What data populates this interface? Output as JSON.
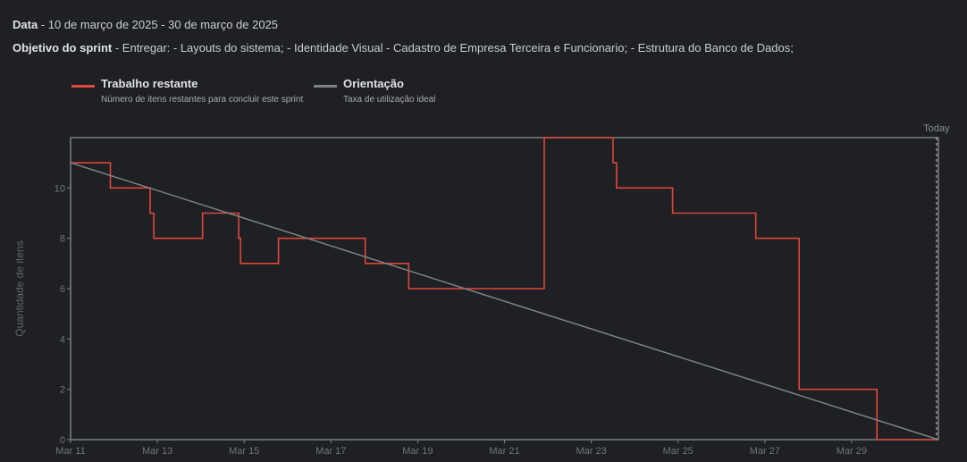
{
  "header": {
    "date_label": "Data",
    "date_value": " - 10 de março de 2025 - 30 de março de 2025",
    "goal_label": "Objetivo do sprint",
    "goal_value": " - Entregar: - Layouts do sistema; - Identidade Visual - Cadastro de Empresa Terceira e Funcionario; - Estrutura do Banco de Dados;"
  },
  "legend": {
    "remaining": {
      "title": "Trabalho restante",
      "subtitle": "Número de itens restantes para concluir este sprint",
      "color": "#e0453a"
    },
    "guide": {
      "title": "Orientação",
      "subtitle": "Taxa de utilização ideal",
      "color": "#7d8287"
    }
  },
  "chart_data": {
    "type": "line",
    "ylabel": "Quantidade de itens",
    "ylim": [
      0,
      12
    ],
    "yticks": [
      0,
      2,
      4,
      6,
      8,
      10
    ],
    "xlim": [
      "2025-03-11",
      "2025-03-31"
    ],
    "xticks": [
      "Mar 11",
      "Mar 13",
      "Mar 15",
      "Mar 17",
      "Mar 19",
      "Mar 21",
      "Mar 23",
      "Mar 25",
      "Mar 27",
      "Mar 29"
    ],
    "today_label": "Today",
    "today": "2025-03-30 23:00",
    "series": [
      {
        "name": "Trabalho restante",
        "color": "#e0453a",
        "step": true,
        "points": [
          [
            "2025-03-11 00:00",
            11
          ],
          [
            "2025-03-11 22:00",
            10
          ],
          [
            "2025-03-12 20:00",
            9
          ],
          [
            "2025-03-12 22:00",
            8
          ],
          [
            "2025-03-14 01:00",
            9
          ],
          [
            "2025-03-14 21:00",
            8
          ],
          [
            "2025-03-14 22:00",
            7
          ],
          [
            "2025-03-15 19:00",
            8
          ],
          [
            "2025-03-17 19:00",
            7
          ],
          [
            "2025-03-18 19:00",
            6
          ],
          [
            "2025-03-21 22:00",
            12
          ],
          [
            "2025-03-23 12:00",
            11
          ],
          [
            "2025-03-23 14:00",
            10
          ],
          [
            "2025-03-24 21:00",
            9
          ],
          [
            "2025-03-26 19:00",
            8
          ],
          [
            "2025-03-27 19:00",
            2
          ],
          [
            "2025-03-29 14:00",
            0
          ],
          [
            "2025-03-30 23:00",
            0
          ]
        ]
      },
      {
        "name": "Orientação",
        "color": "#7d8287",
        "step": false,
        "points": [
          [
            "2025-03-11 00:00",
            11
          ],
          [
            "2025-03-31 00:00",
            0
          ]
        ]
      }
    ]
  }
}
